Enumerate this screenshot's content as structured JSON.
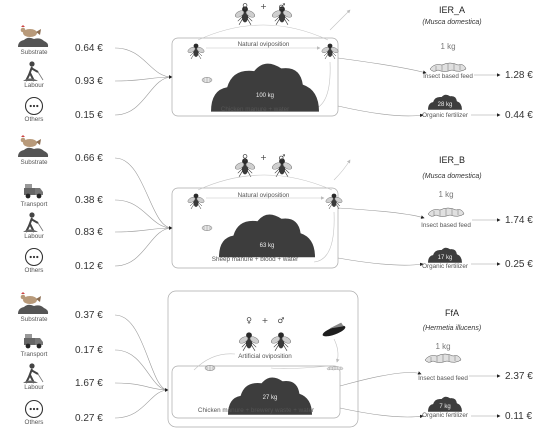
{
  "scenarios": [
    {
      "id": "IER_A",
      "title": "IER_A",
      "species": "(Musca domestica)",
      "inputs": [
        {
          "label": "Substrate",
          "cost": "0.64 €",
          "icon": "chicken-manure-icon"
        },
        {
          "label": "Labour",
          "cost": "0.93 €",
          "icon": "worker-shovel-icon"
        },
        {
          "label": "Others",
          "cost": "0.15 €",
          "icon": "ellipsis-circle-icon"
        }
      ],
      "oviposition": "Natural oviposition",
      "substrate_amount": "100  kg",
      "substrate_label": "Chicken manure + water",
      "feed_amount": "1 kg",
      "feed_label": "Insect based feed",
      "feed_cost": "1.28 €",
      "fert_amount": "28 kg",
      "fert_label": "Organic fertilizer",
      "fert_cost": "0.44 €"
    },
    {
      "id": "IER_B",
      "title": "IER_B",
      "species": "(Musca domestica)",
      "inputs": [
        {
          "label": "Substrate",
          "cost": "0.66 €",
          "icon": "chicken-manure-icon"
        },
        {
          "label": "Transport",
          "cost": "0.38 €",
          "icon": "pickup-truck-icon"
        },
        {
          "label": "Labour",
          "cost": "0.83 €",
          "icon": "worker-shovel-icon"
        },
        {
          "label": "Others",
          "cost": "0.12 €",
          "icon": "ellipsis-circle-icon"
        }
      ],
      "oviposition": "Natural oviposition",
      "substrate_amount": "63 kg",
      "substrate_label": "Sheep manure + blood + water",
      "feed_amount": "1 kg",
      "feed_label": "Insect based feed",
      "feed_cost": "1.74 €",
      "fert_amount": "17 kg",
      "fert_label": "Organic fertilizer",
      "fert_cost": "0.25 €"
    },
    {
      "id": "FfA",
      "title": "FfA",
      "species": "(Hermetia illucens)",
      "inputs": [
        {
          "label": "Substrate",
          "cost": "0.37 €",
          "icon": "chicken-manure-icon"
        },
        {
          "label": "Transport",
          "cost": "0.17 €",
          "icon": "pickup-truck-icon"
        },
        {
          "label": "Labour",
          "cost": "1.67 €",
          "icon": "worker-shovel-icon"
        },
        {
          "label": "Others",
          "cost": "0.27 €",
          "icon": "ellipsis-circle-icon"
        }
      ],
      "oviposition": "Artificial oviposition",
      "substrate_amount": "27 kg",
      "substrate_label": "Chicken manure + brewery waste + water",
      "feed_amount": "1 kg",
      "feed_label": "Insect based feed",
      "feed_cost": "2.37 €",
      "fert_amount": "7 kg",
      "fert_label": "Organic fertilizer",
      "fert_cost": "0.11 €"
    }
  ],
  "symbols": {
    "female": "♀",
    "plus": "+",
    "male": "♂"
  }
}
